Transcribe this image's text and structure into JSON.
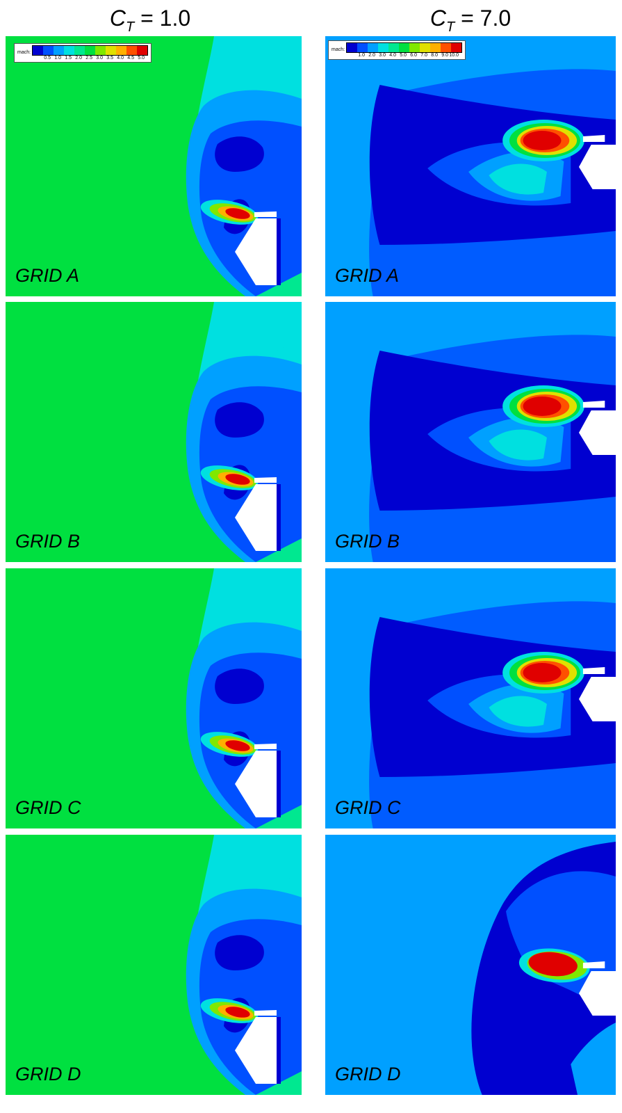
{
  "columns": [
    {
      "symbol": "C",
      "subscript": "T",
      "equals": "= 1.0"
    },
    {
      "symbol": "C",
      "subscript": "T",
      "equals": "= 7.0"
    }
  ],
  "legends": [
    {
      "label": "mach:",
      "ticks": [
        "0.5",
        "1.0",
        "1.5",
        "2.0",
        "2.5",
        "3.0",
        "3.5",
        "4.0",
        "4.5",
        "5.0"
      ]
    },
    {
      "label": "mach:",
      "ticks": [
        "1.0",
        "2.0",
        "3.0",
        "4.0",
        "5.0",
        "6.0",
        "7.0",
        "8.0",
        "9.0",
        "10.0"
      ]
    }
  ],
  "colormap": [
    "#0000d0",
    "#0050ff",
    "#00a0ff",
    "#00e0e0",
    "#00e890",
    "#00e040",
    "#80e800",
    "#e0e000",
    "#ffb000",
    "#ff5000",
    "#e00000"
  ],
  "grids": [
    "GRID A",
    "GRID B",
    "GRID C",
    "GRID D"
  ],
  "panels": [
    {
      "case": "CT1",
      "grid_label": "GRID A"
    },
    {
      "case": "CT7",
      "grid_label": "GRID A"
    },
    {
      "case": "CT1",
      "grid_label": "GRID B"
    },
    {
      "case": "CT7",
      "grid_label": "GRID B"
    },
    {
      "case": "CT1",
      "grid_label": "GRID C"
    },
    {
      "case": "CT7",
      "grid_label": "GRID C"
    },
    {
      "case": "CT1",
      "grid_label": "GRID D"
    },
    {
      "case": "CT7",
      "grid_label": "GRID D"
    }
  ]
}
